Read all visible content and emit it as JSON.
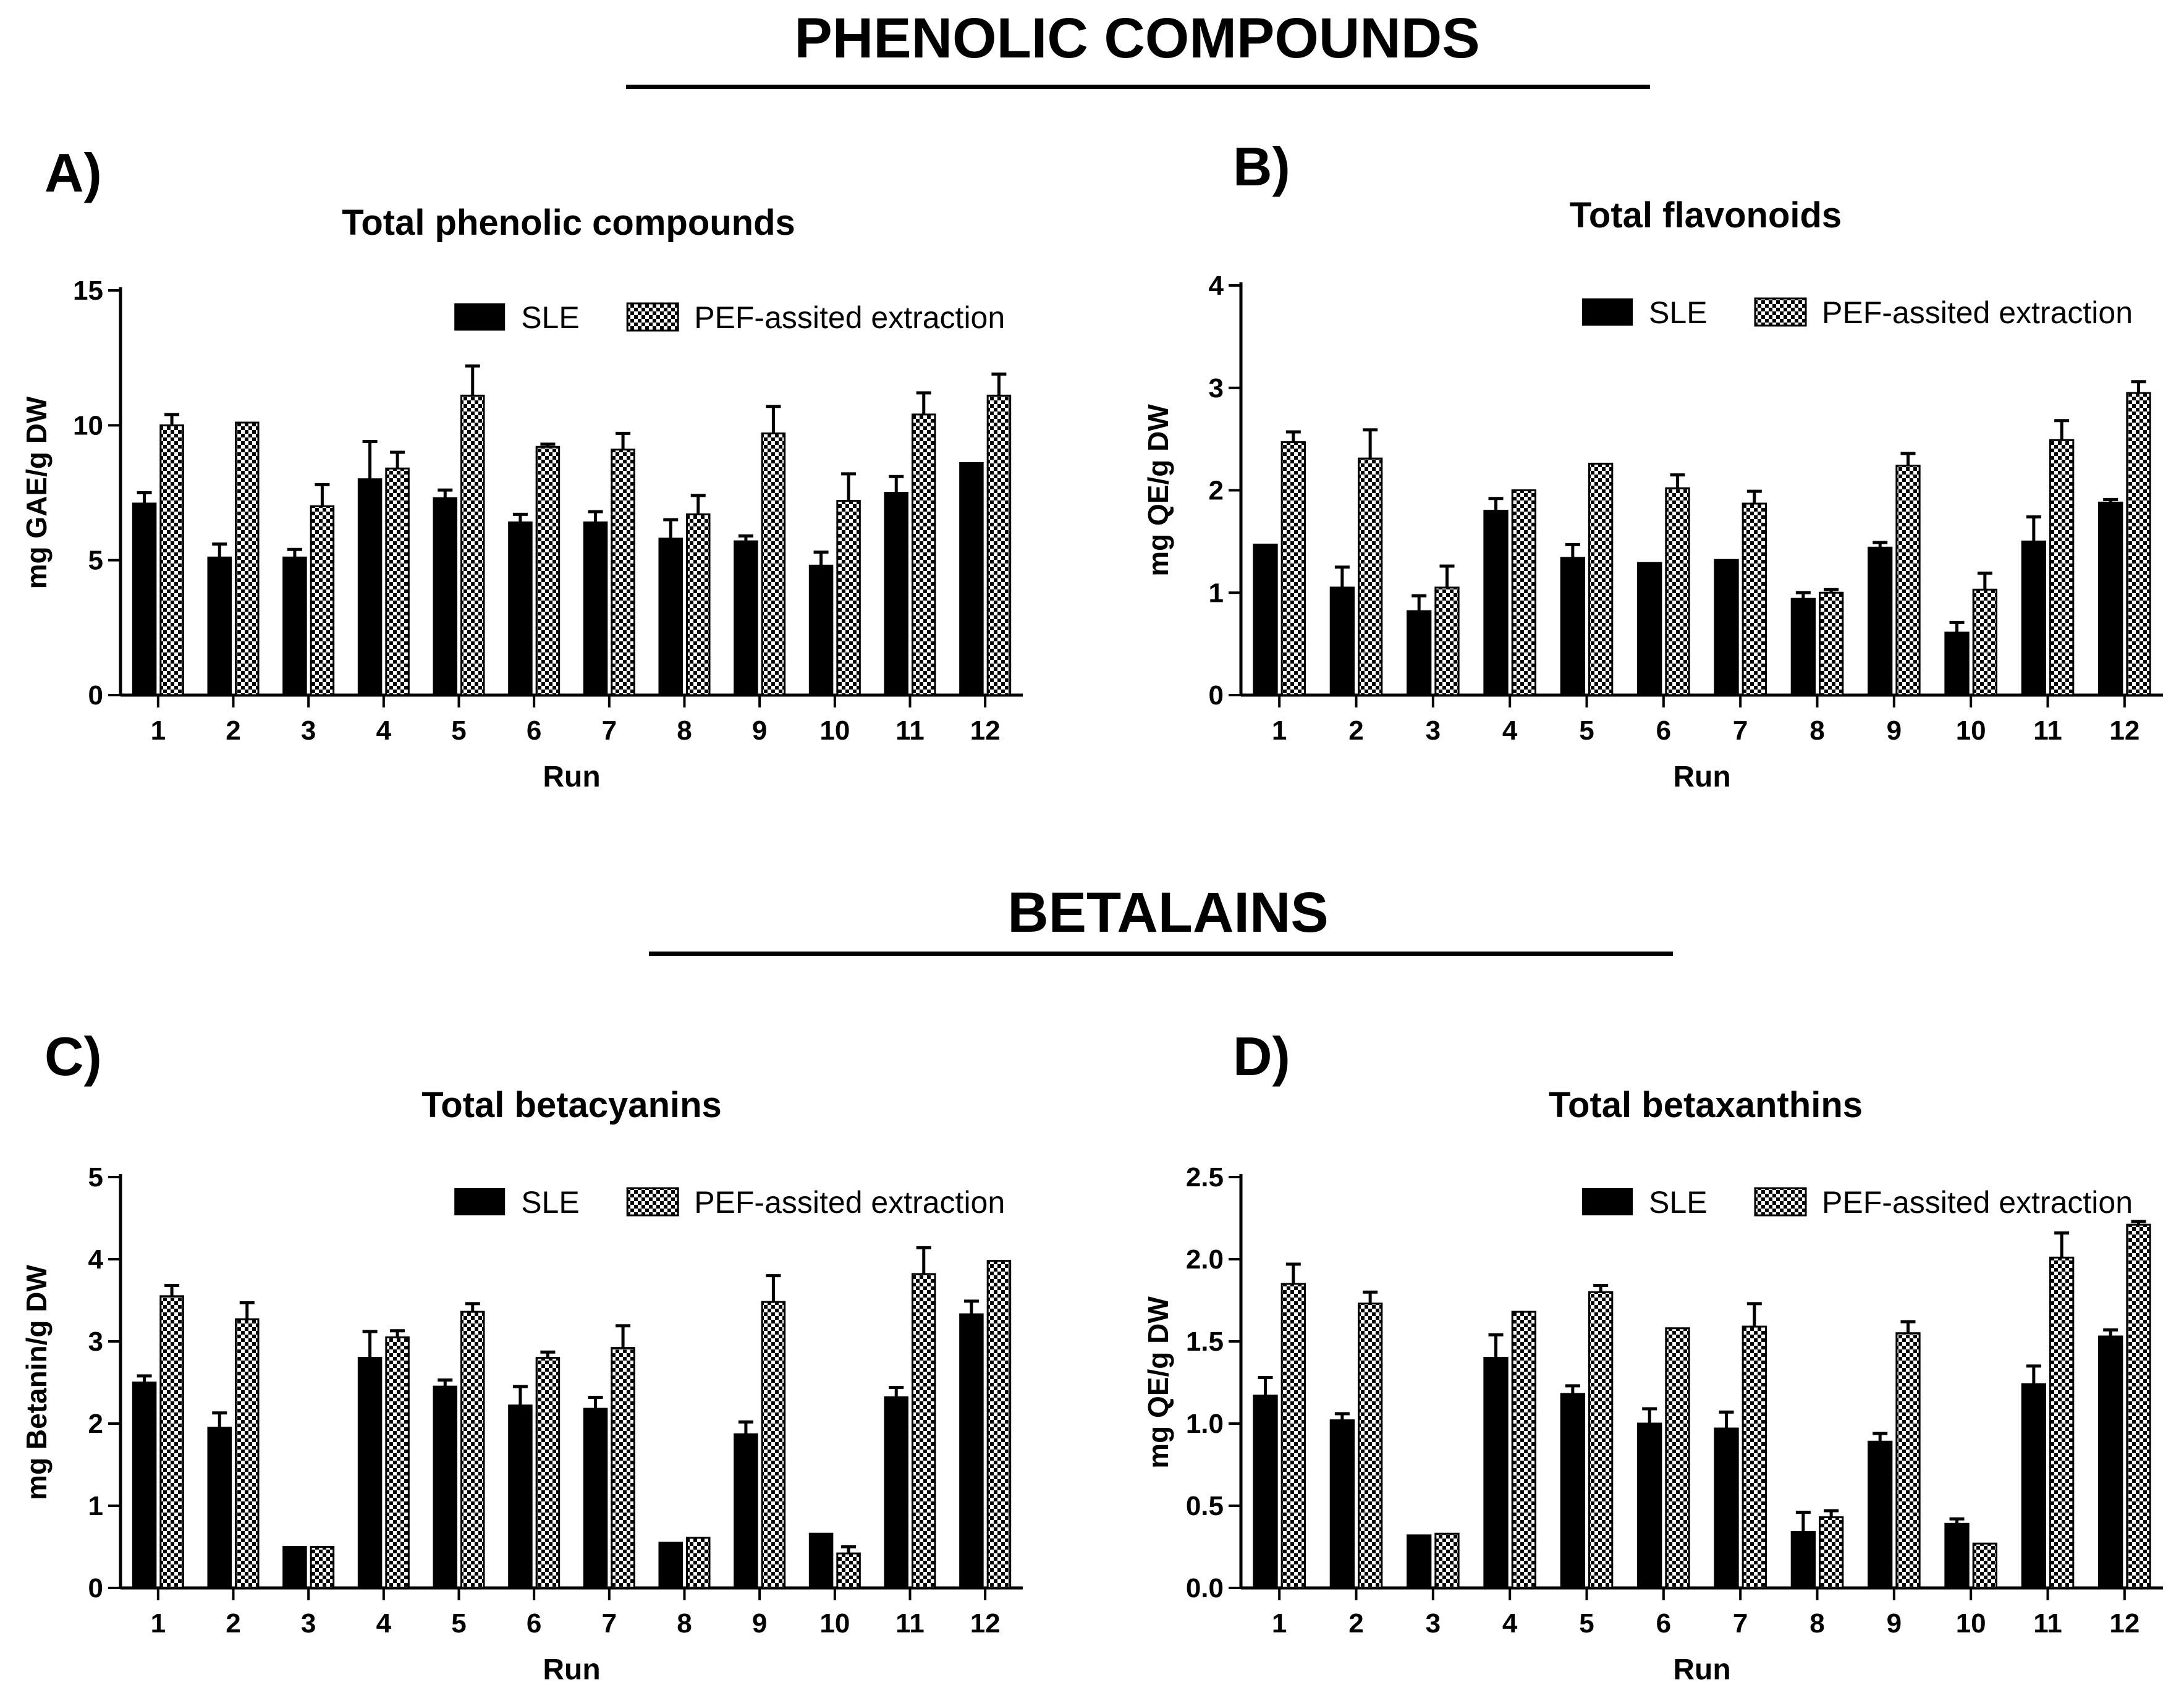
{
  "sections": [
    {
      "title": "PHENOLIC COMPOUNDS"
    },
    {
      "title": "BETALAINS"
    }
  ],
  "legend": {
    "sle": "SLE",
    "pef": "PEF-assited extraction"
  },
  "colors": {
    "sle_fill": "#000000",
    "pef_check": "#000000",
    "background": "#ffffff"
  },
  "chart_data": [
    {
      "panel": "A)",
      "type": "bar",
      "title": "Total phenolic compounds",
      "xlabel": "Run",
      "ylabel": "mg GAE/g DW",
      "categories": [
        "1",
        "2",
        "3",
        "4",
        "5",
        "6",
        "7",
        "8",
        "9",
        "10",
        "11",
        "12"
      ],
      "ylim": [
        0,
        15
      ],
      "yticks": [
        "0",
        "5",
        "10",
        "15"
      ],
      "series": [
        {
          "name": "SLE",
          "values": [
            7.1,
            5.1,
            5.1,
            8.0,
            7.3,
            6.4,
            6.4,
            5.8,
            5.7,
            4.8,
            7.5,
            8.6
          ],
          "errors": [
            0.4,
            0.5,
            0.3,
            1.4,
            0.3,
            0.3,
            0.4,
            0.7,
            0.2,
            0.5,
            0.6,
            0.0
          ]
        },
        {
          "name": "PEF-assited extraction",
          "values": [
            10.0,
            10.1,
            7.0,
            8.4,
            11.1,
            9.2,
            9.1,
            6.7,
            9.7,
            7.2,
            10.4,
            11.1
          ],
          "errors": [
            0.4,
            0.0,
            0.8,
            0.6,
            1.1,
            0.1,
            0.6,
            0.7,
            1.0,
            1.0,
            0.8,
            0.8
          ]
        }
      ]
    },
    {
      "panel": "B)",
      "type": "bar",
      "title": "Total flavonoids",
      "xlabel": "Run",
      "ylabel": "mg QE/g DW",
      "categories": [
        "1",
        "2",
        "3",
        "4",
        "5",
        "6",
        "7",
        "8",
        "9",
        "10",
        "11",
        "12"
      ],
      "ylim": [
        0,
        4
      ],
      "yticks": [
        "0",
        "1",
        "2",
        "3",
        "4"
      ],
      "series": [
        {
          "name": "SLE",
          "values": [
            1.47,
            1.05,
            0.82,
            1.8,
            1.34,
            1.29,
            1.32,
            0.94,
            1.44,
            0.61,
            1.5,
            1.88
          ],
          "errors": [
            0.0,
            0.2,
            0.15,
            0.12,
            0.13,
            0.0,
            0.0,
            0.06,
            0.05,
            0.1,
            0.24,
            0.03
          ]
        },
        {
          "name": "PEF-assited extraction",
          "values": [
            2.47,
            2.31,
            1.05,
            2.0,
            2.26,
            2.02,
            1.87,
            1.0,
            2.24,
            1.03,
            2.49,
            2.95
          ],
          "errors": [
            0.1,
            0.28,
            0.21,
            0.0,
            0.0,
            0.13,
            0.12,
            0.03,
            0.12,
            0.16,
            0.19,
            0.11
          ]
        }
      ]
    },
    {
      "panel": "C)",
      "type": "bar",
      "title": "Total betacyanins",
      "xlabel": "Run",
      "ylabel": "mg Betanin/g DW",
      "categories": [
        "1",
        "2",
        "3",
        "4",
        "5",
        "6",
        "7",
        "8",
        "9",
        "10",
        "11",
        "12"
      ],
      "ylim": [
        0,
        5
      ],
      "yticks": [
        "0",
        "1",
        "2",
        "3",
        "4",
        "5"
      ],
      "series": [
        {
          "name": "SLE",
          "values": [
            2.5,
            1.95,
            0.5,
            2.8,
            2.45,
            2.22,
            2.18,
            0.55,
            1.87,
            0.66,
            2.32,
            3.33
          ],
          "errors": [
            0.08,
            0.18,
            0.0,
            0.32,
            0.08,
            0.23,
            0.14,
            0.0,
            0.15,
            0.0,
            0.12,
            0.16
          ]
        },
        {
          "name": "PEF-assited extraction",
          "values": [
            3.55,
            3.27,
            0.5,
            3.05,
            3.36,
            2.8,
            2.92,
            0.61,
            3.48,
            0.42,
            3.82,
            3.98
          ],
          "errors": [
            0.13,
            0.2,
            0.0,
            0.08,
            0.1,
            0.07,
            0.27,
            0.0,
            0.32,
            0.08,
            0.32,
            0.0
          ]
        }
      ]
    },
    {
      "panel": "D)",
      "type": "bar",
      "title": "Total betaxanthins",
      "xlabel": "Run",
      "ylabel": "mg QE/g DW",
      "categories": [
        "1",
        "2",
        "3",
        "4",
        "5",
        "6",
        "7",
        "8",
        "9",
        "10",
        "11",
        "12"
      ],
      "ylim": [
        0,
        2.5
      ],
      "yticks": [
        "0.0",
        "0.5",
        "1.0",
        "1.5",
        "2.0",
        "2.5"
      ],
      "series": [
        {
          "name": "SLE",
          "values": [
            1.17,
            1.02,
            0.32,
            1.4,
            1.18,
            1.0,
            0.97,
            0.34,
            0.89,
            0.39,
            1.24,
            1.53
          ],
          "errors": [
            0.11,
            0.04,
            0.0,
            0.14,
            0.05,
            0.09,
            0.1,
            0.12,
            0.05,
            0.03,
            0.11,
            0.04
          ]
        },
        {
          "name": "PEF-assited extraction",
          "values": [
            1.85,
            1.73,
            0.33,
            1.68,
            1.8,
            1.58,
            1.59,
            0.43,
            1.55,
            0.27,
            2.01,
            2.21
          ],
          "errors": [
            0.12,
            0.07,
            0.0,
            0.0,
            0.04,
            0.0,
            0.14,
            0.04,
            0.07,
            0.0,
            0.15,
            0.02
          ]
        }
      ]
    }
  ]
}
